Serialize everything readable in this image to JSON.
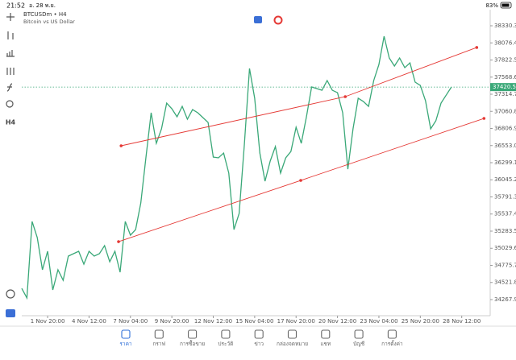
{
  "status": {
    "time": "21:52",
    "date": "อ. 28 พ.ย.",
    "battery": "83%"
  },
  "header": {
    "symbol": "BTCUSDm • H4",
    "description": "Bitcoin vs US Dollar"
  },
  "toolbar": {
    "timeframe": "H4"
  },
  "chart_data": {
    "type": "line",
    "color": "#3aa878",
    "xlim": [
      -4.2,
      90.5
    ],
    "ylim": [
      34028.9,
      38569.3
    ],
    "xticks": [
      {
        "value": 5,
        "label": "1 Nov 20:00"
      },
      {
        "value": 13,
        "label": "4 Nov 12:00"
      },
      {
        "value": 21,
        "label": "7 Nov 04:00"
      },
      {
        "value": 29,
        "label": "9 Nov 20:00"
      },
      {
        "value": 37,
        "label": "12 Nov 12:00"
      },
      {
        "value": 45,
        "label": "15 Nov 04:00"
      },
      {
        "value": 53,
        "label": "17 Nov 20:00"
      },
      {
        "value": 61,
        "label": "20 Nov 12:00"
      },
      {
        "value": 69,
        "label": "23 Nov 04:00"
      },
      {
        "value": 77,
        "label": "25 Nov 20:00"
      },
      {
        "value": 85,
        "label": "28 Nov 12:00"
      }
    ],
    "yticks": [
      {
        "value": 38330.3,
        "label": "38330.30"
      },
      {
        "value": 38076.4,
        "label": "38076.40"
      },
      {
        "value": 37822.5,
        "label": "37822.50"
      },
      {
        "value": 37568.6,
        "label": "37568.60"
      },
      {
        "value": 37314.7,
        "label": "37314.70"
      },
      {
        "value": 37060.8,
        "label": "37060.80"
      },
      {
        "value": 36806.9,
        "label": "36806.90"
      },
      {
        "value": 36553,
        "label": "36553.00"
      },
      {
        "value": 36299.1,
        "label": "36299.10"
      },
      {
        "value": 36045.2,
        "label": "36045.20"
      },
      {
        "value": 35791.3,
        "label": "35791.30"
      },
      {
        "value": 35537.4,
        "label": "35537.40"
      },
      {
        "value": 35283.5,
        "label": "35283.50"
      },
      {
        "value": 35029.6,
        "label": "35029.60"
      },
      {
        "value": 34775.7,
        "label": "34775.70"
      },
      {
        "value": 34521.8,
        "label": "34521.80"
      },
      {
        "value": 34267.9,
        "label": "34267.90"
      }
    ],
    "values": [
      34435,
      34292,
      35427,
      35188,
      34710,
      34985,
      34411,
      34710,
      34554,
      34913,
      34949,
      34985,
      34793,
      34985,
      34913,
      34949,
      35068,
      34829,
      34985,
      34674,
      35427,
      35224,
      35307,
      35701,
      36382,
      37040,
      36586,
      36801,
      37183,
      37099,
      36980,
      37135,
      36944,
      37087,
      37040,
      36968,
      36896,
      36382,
      36371,
      36442,
      36144,
      35307,
      35546,
      36562,
      37697,
      37255,
      36442,
      36024,
      36323,
      36538,
      36144,
      36371,
      36466,
      36825,
      36586,
      36980,
      37422,
      37398,
      37374,
      37518,
      37374,
      37338,
      37040,
      36203,
      36801,
      37255,
      37207,
      37135,
      37518,
      37756,
      38175,
      37852,
      37733,
      37852,
      37709,
      37780,
      37494,
      37446,
      37219,
      36801,
      36920,
      37183,
      37302,
      37420.56
    ],
    "current_price": {
      "value": 37420.56,
      "label": "37420.56",
      "color": "#3aa878"
    },
    "trendlines": [
      {
        "color": "#e53935",
        "x": [
          19.2,
          62.5,
          87.9
        ],
        "values": [
          36550,
          37279,
          38008
        ]
      },
      {
        "color": "#e53935",
        "x": [
          18.7,
          53.9,
          89.3
        ],
        "values": [
          35128,
          36036,
          36956
        ]
      }
    ]
  },
  "nav": {
    "items": [
      {
        "label": "ราคา",
        "active": true
      },
      {
        "label": "กราฟ",
        "active": false
      },
      {
        "label": "การซื้อขาย",
        "active": false
      },
      {
        "label": "ประวัติ",
        "active": false
      },
      {
        "label": "ข่าว",
        "active": false
      },
      {
        "label": "กล่องจดหมาย",
        "active": false
      },
      {
        "label": "แชท",
        "active": false
      },
      {
        "label": "บัญชี",
        "active": false
      },
      {
        "label": "การตั้งค่า",
        "active": false
      }
    ]
  }
}
